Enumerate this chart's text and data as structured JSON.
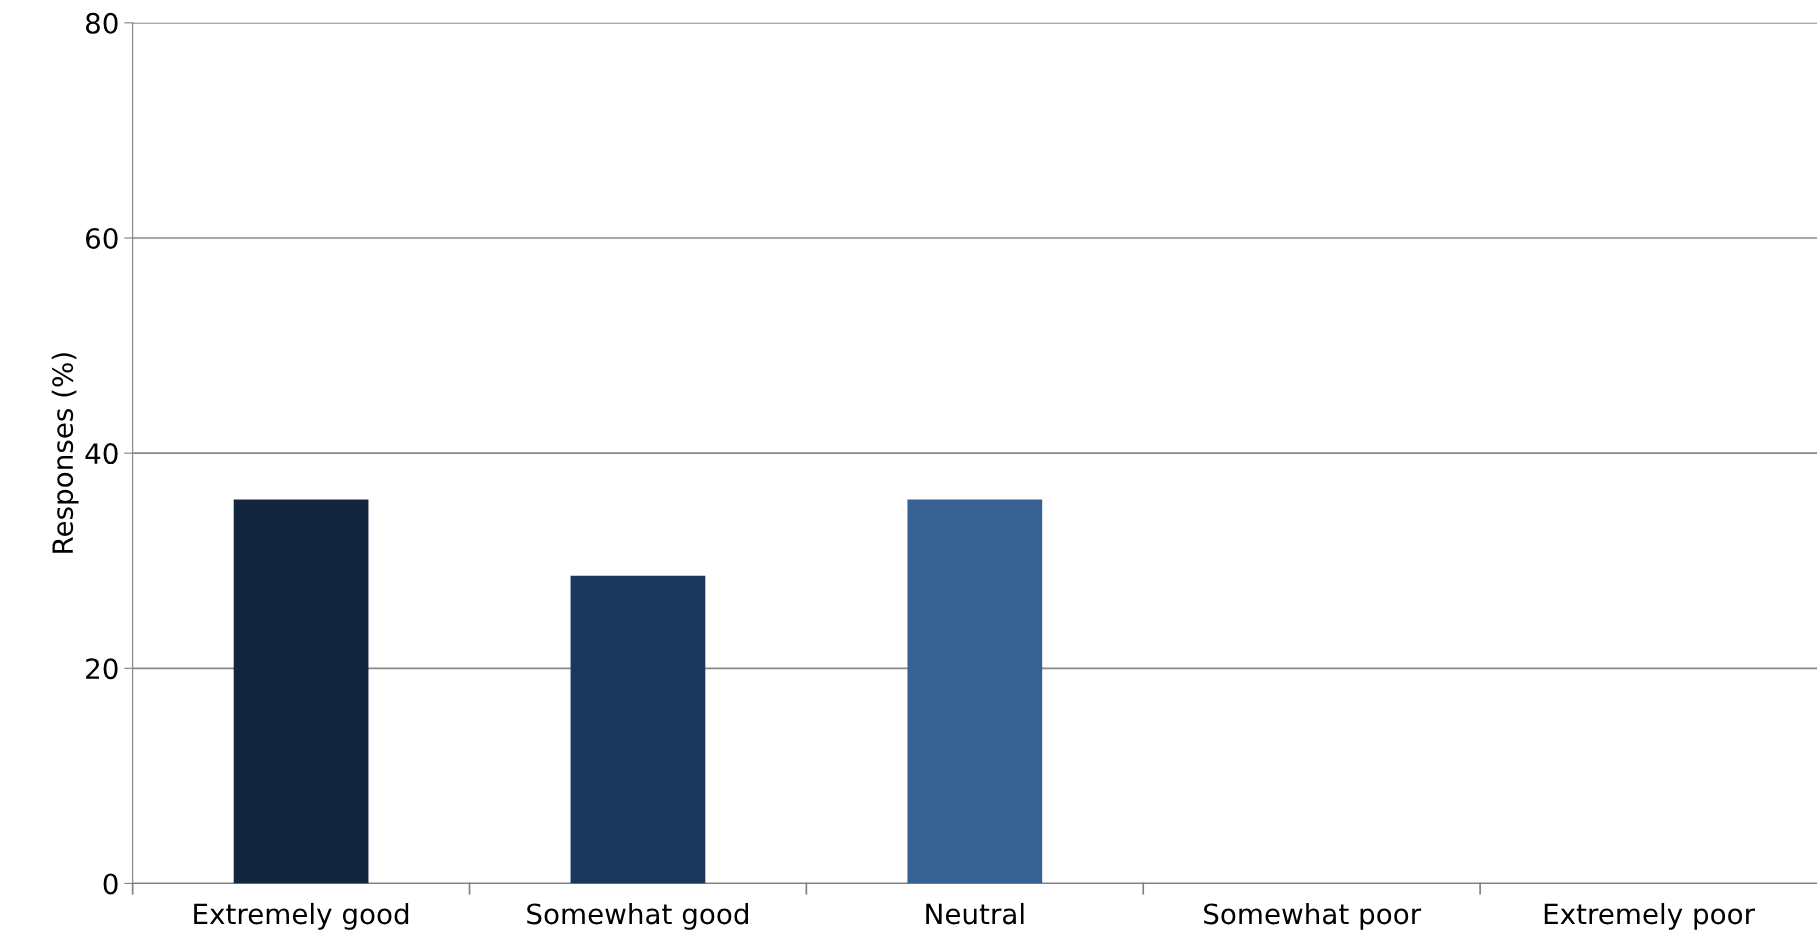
{
  "chart_data": {
    "type": "bar",
    "categories": [
      "Extremely good",
      "Somewhat good",
      "Neutral",
      "Somewhat poor",
      "Extremely poor"
    ],
    "values": [
      35.7,
      28.6,
      35.7,
      0,
      0
    ],
    "colors": [
      "#14263f",
      "#1a375c",
      "#376093",
      "#4f81bd",
      "#95b3d7"
    ],
    "ylabel": "Responses (%)",
    "ylim": [
      0,
      80
    ],
    "yticks": [
      0,
      20,
      40,
      60,
      80
    ],
    "grid": "y"
  }
}
